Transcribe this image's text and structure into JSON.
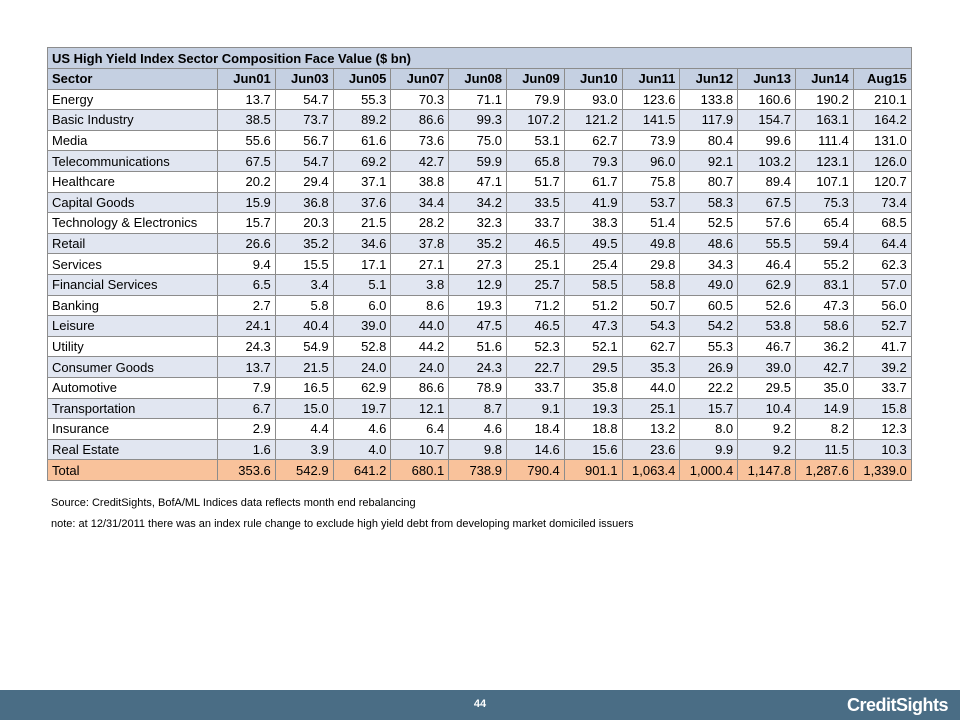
{
  "table": {
    "title": "US High Yield Index Sector Composition Face Value ($ bn)",
    "sector_header": "Sector",
    "columns": [
      "Jun01",
      "Jun03",
      "Jun05",
      "Jun07",
      "Jun08",
      "Jun09",
      "Jun10",
      "Jun11",
      "Jun12",
      "Jun13",
      "Jun14",
      "Aug15"
    ],
    "rows": [
      {
        "sector": "Energy",
        "values": [
          "13.7",
          "54.7",
          "55.3",
          "70.3",
          "71.1",
          "79.9",
          "93.0",
          "123.6",
          "133.8",
          "160.6",
          "190.2",
          "210.1"
        ]
      },
      {
        "sector": "Basic Industry",
        "values": [
          "38.5",
          "73.7",
          "89.2",
          "86.6",
          "99.3",
          "107.2",
          "121.2",
          "141.5",
          "117.9",
          "154.7",
          "163.1",
          "164.2"
        ]
      },
      {
        "sector": "Media",
        "values": [
          "55.6",
          "56.7",
          "61.6",
          "73.6",
          "75.0",
          "53.1",
          "62.7",
          "73.9",
          "80.4",
          "99.6",
          "111.4",
          "131.0"
        ]
      },
      {
        "sector": "Telecommunications",
        "values": [
          "67.5",
          "54.7",
          "69.2",
          "42.7",
          "59.9",
          "65.8",
          "79.3",
          "96.0",
          "92.1",
          "103.2",
          "123.1",
          "126.0"
        ]
      },
      {
        "sector": "Healthcare",
        "values": [
          "20.2",
          "29.4",
          "37.1",
          "38.8",
          "47.1",
          "51.7",
          "61.7",
          "75.8",
          "80.7",
          "89.4",
          "107.1",
          "120.7"
        ]
      },
      {
        "sector": "Capital Goods",
        "values": [
          "15.9",
          "36.8",
          "37.6",
          "34.4",
          "34.2",
          "33.5",
          "41.9",
          "53.7",
          "58.3",
          "67.5",
          "75.3",
          "73.4"
        ]
      },
      {
        "sector": "Technology & Electronics",
        "values": [
          "15.7",
          "20.3",
          "21.5",
          "28.2",
          "32.3",
          "33.7",
          "38.3",
          "51.4",
          "52.5",
          "57.6",
          "65.4",
          "68.5"
        ]
      },
      {
        "sector": "Retail",
        "values": [
          "26.6",
          "35.2",
          "34.6",
          "37.8",
          "35.2",
          "46.5",
          "49.5",
          "49.8",
          "48.6",
          "55.5",
          "59.4",
          "64.4"
        ]
      },
      {
        "sector": "Services",
        "values": [
          "9.4",
          "15.5",
          "17.1",
          "27.1",
          "27.3",
          "25.1",
          "25.4",
          "29.8",
          "34.3",
          "46.4",
          "55.2",
          "62.3"
        ]
      },
      {
        "sector": "Financial Services",
        "values": [
          "6.5",
          "3.4",
          "5.1",
          "3.8",
          "12.9",
          "25.7",
          "58.5",
          "58.8",
          "49.0",
          "62.9",
          "83.1",
          "57.0"
        ]
      },
      {
        "sector": "Banking",
        "values": [
          "2.7",
          "5.8",
          "6.0",
          "8.6",
          "19.3",
          "71.2",
          "51.2",
          "50.7",
          "60.5",
          "52.6",
          "47.3",
          "56.0"
        ]
      },
      {
        "sector": "Leisure",
        "values": [
          "24.1",
          "40.4",
          "39.0",
          "44.0",
          "47.5",
          "46.5",
          "47.3",
          "54.3",
          "54.2",
          "53.8",
          "58.6",
          "52.7"
        ]
      },
      {
        "sector": "Utility",
        "values": [
          "24.3",
          "54.9",
          "52.8",
          "44.2",
          "51.6",
          "52.3",
          "52.1",
          "62.7",
          "55.3",
          "46.7",
          "36.2",
          "41.7"
        ]
      },
      {
        "sector": "Consumer Goods",
        "values": [
          "13.7",
          "21.5",
          "24.0",
          "24.0",
          "24.3",
          "22.7",
          "29.5",
          "35.3",
          "26.9",
          "39.0",
          "42.7",
          "39.2"
        ]
      },
      {
        "sector": "Automotive",
        "values": [
          "7.9",
          "16.5",
          "62.9",
          "86.6",
          "78.9",
          "33.7",
          "35.8",
          "44.0",
          "22.2",
          "29.5",
          "35.0",
          "33.7"
        ]
      },
      {
        "sector": "Transportation",
        "values": [
          "6.7",
          "15.0",
          "19.7",
          "12.1",
          "8.7",
          "9.1",
          "19.3",
          "25.1",
          "15.7",
          "10.4",
          "14.9",
          "15.8"
        ]
      },
      {
        "sector": "Insurance",
        "values": [
          "2.9",
          "4.4",
          "4.6",
          "6.4",
          "4.6",
          "18.4",
          "18.8",
          "13.2",
          "8.0",
          "9.2",
          "8.2",
          "12.3"
        ]
      },
      {
        "sector": "Real Estate",
        "values": [
          "1.6",
          "3.9",
          "4.0",
          "10.7",
          "9.8",
          "14.6",
          "15.6",
          "23.6",
          "9.9",
          "9.2",
          "11.5",
          "10.3"
        ]
      }
    ],
    "total": {
      "sector": "Total",
      "values": [
        "353.6",
        "542.9",
        "641.2",
        "680.1",
        "738.9",
        "790.4",
        "901.1",
        "1,063.4",
        "1,000.4",
        "1,147.8",
        "1,287.6",
        "1,339.0"
      ]
    }
  },
  "notes": {
    "source": "Source: CreditSights, BofA/ML Indices   data reflects month end rebalancing",
    "rule_change": "note: at 12/31/2011 there was an index rule change to exclude high yield debt from developing market domiciled issuers"
  },
  "footer": {
    "page_number": "44",
    "logo_text": "CreditSights"
  },
  "colors": {
    "header_fill": "#c5d0e2",
    "band_fill": "#e1e6f1",
    "total_fill": "#f9c29b",
    "footer_bar": "#4a6d85"
  }
}
